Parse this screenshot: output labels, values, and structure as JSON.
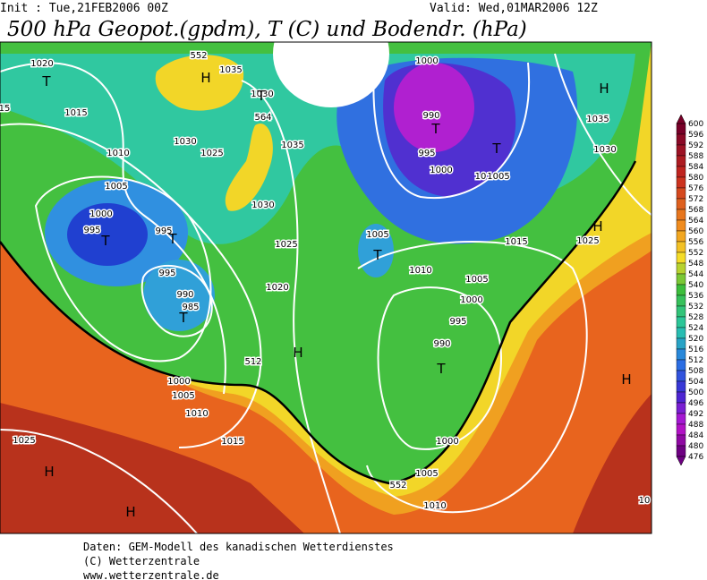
{
  "header": {
    "init": "Init : Tue,21FEB2006 00Z",
    "valid": "Valid: Wed,01MAR2006 12Z",
    "title": "500 hPa Geopot.(gpdm), T (C) und Bodendr. (hPa)"
  },
  "map": {
    "labels": [
      "1020",
      "T",
      "15",
      "1015",
      "1010",
      "1030",
      "1025",
      "1035",
      "552",
      "H",
      "1030",
      "T",
      "564",
      "1035",
      "1030",
      "1025",
      "1020",
      "1005",
      "1000",
      "995",
      "T",
      "995",
      "T",
      "995",
      "990",
      "985",
      "T",
      "H",
      "512",
      "1000",
      "1005",
      "1010",
      "1015",
      "1025",
      "H",
      "H",
      "1000",
      "990",
      "T",
      "995",
      "T",
      "1000",
      "10",
      "1005",
      "H",
      "1035",
      "1030",
      "H",
      "1025",
      "1015",
      "1005",
      "T",
      "1010",
      "1005",
      "1000",
      "995",
      "990",
      "T",
      "H",
      "1000",
      "1005",
      "552",
      "1010",
      "10"
    ]
  },
  "colorbar": {
    "labels": [
      600,
      596,
      592,
      588,
      584,
      580,
      576,
      572,
      568,
      564,
      560,
      556,
      552,
      548,
      544,
      540,
      536,
      532,
      528,
      524,
      520,
      516,
      512,
      508,
      504,
      500,
      496,
      492,
      488,
      484,
      480,
      476
    ]
  },
  "footer": {
    "lines": [
      "Daten: GEM-Modell des kanadischen Wetterdienstes",
      "(C) Wetterzentrale",
      "www.wetterzentrale.de"
    ]
  }
}
